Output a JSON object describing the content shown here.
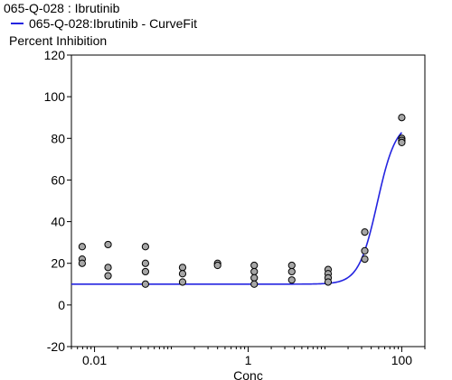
{
  "title": "065-Q-028  : Ibrutinib",
  "legend": {
    "label": "065-Q-028:Ibrutinib - CurveFit",
    "color": "#2424e0"
  },
  "point_fill": "#a6a6a6",
  "chart_data": {
    "type": "scatter",
    "title": "065-Q-028  : Ibrutinib",
    "xlabel": "Conc",
    "ylabel": "Percent Inhibition",
    "x_scale": "log",
    "xlim": [
      0.005,
      200
    ],
    "ylim": [
      -20,
      120
    ],
    "y_ticks": [
      -20,
      0,
      20,
      40,
      60,
      80,
      100,
      120
    ],
    "x_ticks": [
      {
        "value": 0.01,
        "label": "0.01"
      },
      {
        "value": 1,
        "label": "1"
      },
      {
        "value": 100,
        "label": "100"
      }
    ],
    "grid": false,
    "series": [
      {
        "type": "scatter",
        "points": [
          [
            0.0069,
            28
          ],
          [
            0.0069,
            22
          ],
          [
            0.0069,
            20
          ],
          [
            0.015,
            29
          ],
          [
            0.015,
            18
          ],
          [
            0.015,
            14
          ],
          [
            0.046,
            28
          ],
          [
            0.046,
            20
          ],
          [
            0.046,
            16
          ],
          [
            0.046,
            10
          ],
          [
            0.14,
            18
          ],
          [
            0.14,
            15
          ],
          [
            0.14,
            11
          ],
          [
            0.4,
            20
          ],
          [
            0.4,
            19
          ],
          [
            1.2,
            19
          ],
          [
            1.2,
            16
          ],
          [
            1.2,
            13
          ],
          [
            1.2,
            10
          ],
          [
            3.7,
            19
          ],
          [
            3.7,
            16
          ],
          [
            3.7,
            12
          ],
          [
            11,
            17
          ],
          [
            11,
            15
          ],
          [
            11,
            13
          ],
          [
            11,
            11
          ],
          [
            33,
            35
          ],
          [
            33,
            26
          ],
          [
            33,
            22
          ],
          [
            100,
            90
          ],
          [
            100,
            80
          ],
          [
            100,
            79
          ],
          [
            100,
            78
          ]
        ]
      },
      {
        "type": "line",
        "name": "065-Q-028:Ibrutinib - CurveFit",
        "curve": {
          "bottom": 10,
          "top": 88,
          "ec50": 48,
          "hill": 3.6,
          "x_start": 0.005,
          "x_end": 100
        }
      }
    ]
  }
}
